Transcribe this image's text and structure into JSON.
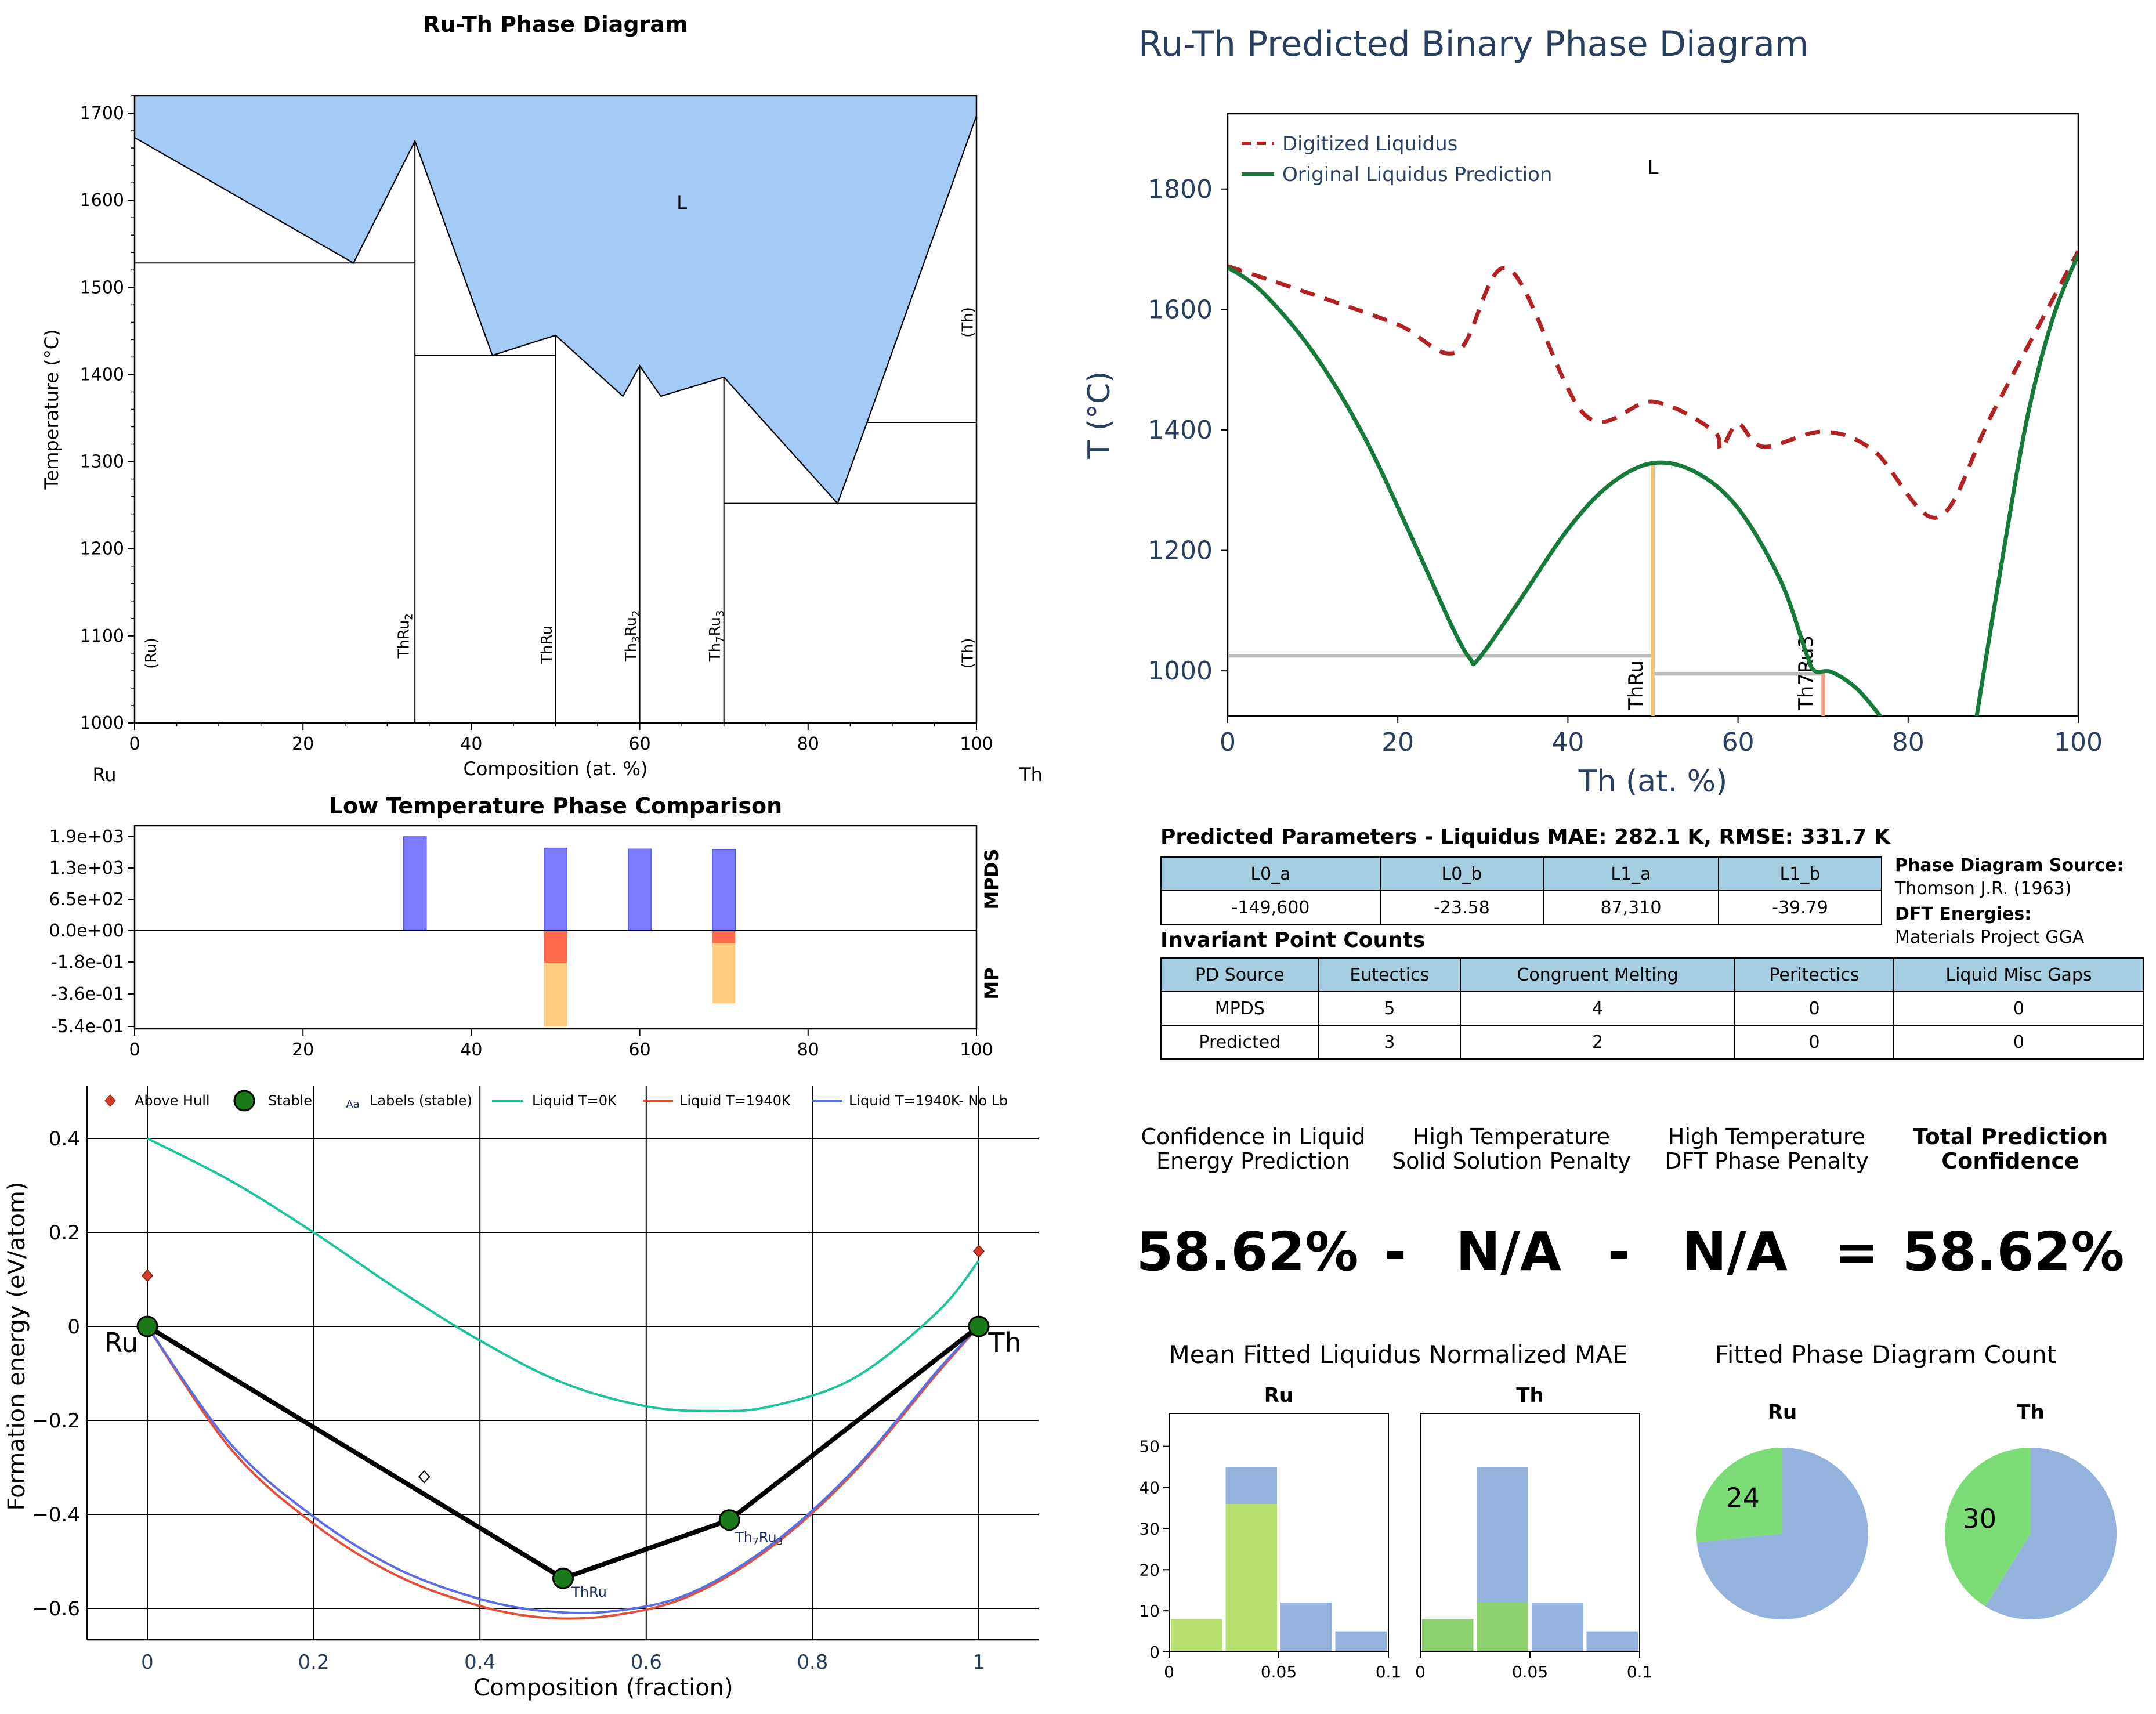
{
  "colors": {
    "liquid_fill": "#a3cbf5",
    "mpds": "#7b7bff",
    "mp_red": "#ff6a4a",
    "mp_orange": "#ffcc80",
    "dig_liquidus": "#b22222",
    "orig_liquidus": "#157a3a",
    "thru_line": "#f0c674",
    "th7ru3_line": "#f39b7a",
    "liq0": "#1bc49a",
    "liq1940": "#e3503a",
    "liq1940nolb": "#5b6ee1",
    "green_hist": "#b8e06e",
    "green_hist_dark": "#8dd06e",
    "blue_hist": "#93b3dc",
    "pie_green": "#7bdc76",
    "pie_blue": "#93b3dc",
    "plotly_text": "#2a3f5f"
  },
  "chart_data": [
    {
      "id": "ruth_phase_diagram",
      "type": "area",
      "title": "Ru-Th Phase Diagram",
      "xlabel": "Composition (at. %)",
      "ylabel": "Temperature (°C)",
      "xlim": [
        0,
        100
      ],
      "ylim": [
        1000,
        1720
      ],
      "xticks": [
        0,
        20,
        40,
        60,
        80,
        100
      ],
      "yticks": [
        1000,
        1100,
        1200,
        1300,
        1400,
        1500,
        1600,
        1700
      ],
      "end_labels": {
        "left": "Ru",
        "right": "Th"
      },
      "liquid_label": "L",
      "liquidus": [
        [
          0,
          1672
        ],
        [
          26,
          1528
        ],
        [
          33.3,
          1668
        ],
        [
          42.5,
          1422
        ],
        [
          50,
          1445
        ],
        [
          58,
          1375
        ],
        [
          60,
          1410
        ],
        [
          62.5,
          1375
        ],
        [
          70,
          1397
        ],
        [
          83.5,
          1252
        ],
        [
          87,
          1345
        ],
        [
          100,
          1697
        ]
      ],
      "horizontal_lines": [
        [
          [
            0,
            33.3
          ],
          1528
        ],
        [
          [
            33.3,
            50
          ],
          1422
        ],
        [
          [
            70,
            100
          ],
          1252
        ],
        [
          [
            87,
            100
          ],
          1345
        ]
      ],
      "vertical_lines": [
        [
          33.3,
          1000,
          1668
        ],
        [
          50,
          1000,
          1445
        ],
        [
          60,
          1000,
          1410
        ],
        [
          70,
          1000,
          1397
        ]
      ],
      "phase_labels": [
        {
          "text": "(Ru)",
          "x": 2,
          "y": 1080
        },
        {
          "text": "ThRu",
          "sub": "2",
          "x": 32,
          "y": 1100
        },
        {
          "text": "ThRu",
          "sub": "",
          "x": 49,
          "y": 1090
        },
        {
          "text": "Th",
          "sub": "3",
          "text2": "Ru",
          "sub2": "2",
          "x": 59,
          "y": 1100
        },
        {
          "text": "Th",
          "sub": "7",
          "text2": "Ru",
          "sub2": "3",
          "x": 69,
          "y": 1100
        },
        {
          "text": "(Th)",
          "x": 99,
          "y": 1080
        },
        {
          "text": "(Th)",
          "x": 99,
          "y": 1460
        }
      ]
    },
    {
      "id": "predicted_binary",
      "type": "line",
      "title": "Ru-Th Predicted Binary Phase Diagram",
      "xlabel": "Th (at. %)",
      "ylabel": "T (°C)",
      "xlim": [
        0,
        100
      ],
      "ylim": [
        925,
        1925
      ],
      "xticks": [
        0,
        20,
        40,
        60,
        80,
        100
      ],
      "yticks": [
        1000,
        1200,
        1400,
        1600,
        1800
      ],
      "liquid_label": "L",
      "series": [
        {
          "name": "Digitized Liquidus",
          "style": "dash",
          "points": [
            [
              0,
              1672
            ],
            [
              10,
              1625
            ],
            [
              20,
              1575
            ],
            [
              27,
              1530
            ],
            [
              33,
              1668
            ],
            [
              42,
              1425
            ],
            [
              50,
              1447
            ],
            [
              57,
              1400
            ],
            [
              58,
              1368
            ],
            [
              60,
              1410
            ],
            [
              63,
              1372
            ],
            [
              70,
              1397
            ],
            [
              76,
              1365
            ],
            [
              83.5,
              1255
            ],
            [
              90,
              1430
            ],
            [
              100,
              1697
            ]
          ]
        },
        {
          "name": "Original Liquidus Prediction",
          "style": "solid",
          "points": [
            [
              0,
              1670
            ],
            [
              4,
              1630
            ],
            [
              10,
              1530
            ],
            [
              16,
              1390
            ],
            [
              22,
              1210
            ],
            [
              26.5,
              1070
            ],
            [
              28.5,
              1020
            ],
            [
              29.5,
              1020
            ],
            [
              34,
              1110
            ],
            [
              40,
              1235
            ],
            [
              45,
              1310
            ],
            [
              50,
              1345
            ],
            [
              55,
              1330
            ],
            [
              60,
              1270
            ],
            [
              65,
              1150
            ],
            [
              68,
              1030
            ],
            [
              69,
              1000
            ],
            [
              71,
              998
            ],
            [
              74,
              970
            ],
            [
              77,
              920
            ]
          ]
        },
        {
          "name": "",
          "style": "solid_right",
          "points": [
            [
              88,
              920
            ],
            [
              91,
              1180
            ],
            [
              94,
              1420
            ],
            [
              97,
              1585
            ],
            [
              100,
              1692
            ]
          ]
        }
      ],
      "gray_lines": [
        [
          [
            0,
            50
          ],
          1025
        ],
        [
          [
            50,
            70
          ],
          995
        ]
      ],
      "compound_lines": [
        {
          "name": "ThRu",
          "x": 50,
          "top": 1345,
          "color": "thru_line"
        },
        {
          "name": "Th7Ru3",
          "x": 70,
          "top": 998,
          "color": "th7ru3_line"
        }
      ]
    },
    {
      "id": "low_temp_comparison",
      "type": "bar",
      "title": "Low Temperature Phase Comparison",
      "xlim": [
        0,
        100
      ],
      "xticks": [
        0,
        20,
        40,
        60,
        80,
        100
      ],
      "yticks": [
        "1.9e+03",
        "1.3e+03",
        "6.5e+02",
        "0.0e+00",
        "-1.8e-01",
        "-3.6e-01",
        "-5.4e-01"
      ],
      "row_labels": [
        "MPDS",
        "MP"
      ],
      "mpds_bars": [
        {
          "x": 33.3,
          "value": 1900
        },
        {
          "x": 50,
          "value": 1670
        },
        {
          "x": 60,
          "value": 1650
        },
        {
          "x": 70,
          "value": 1640
        }
      ],
      "mp_bars": [
        {
          "x": 50,
          "value_red": -0.18,
          "value_orange": -0.54
        },
        {
          "x": 70,
          "value_red": -0.07,
          "value_orange": -0.41
        }
      ]
    },
    {
      "id": "formation_energy",
      "type": "scatter",
      "xlabel": "Composition (fraction)",
      "ylabel": "Formation energy (eV/atom)",
      "xlim": [
        -0.03,
        1.07
      ],
      "ylim": [
        -0.66,
        0.43
      ],
      "xticks": [
        0,
        0.2,
        0.4,
        0.6,
        0.8,
        1
      ],
      "yticks": [
        0.4,
        0.2,
        0,
        -0.2,
        -0.4,
        -0.6
      ],
      "ytick_labels": [
        "0.4",
        "0.2",
        "0",
        "−0.2",
        "−0.4",
        "−0.6"
      ],
      "xtick_labels": [
        "0",
        "0.2",
        "0.4",
        "0.6",
        "0.8",
        "1"
      ],
      "legend": [
        "Above Hull",
        "Stable",
        "Labels (stable)",
        "Liquid T=0K",
        "Liquid T=1940K",
        "Liquid T=1940K- No Lb"
      ],
      "legend_aa": "Aa",
      "stable": [
        {
          "x": 0,
          "y": 0,
          "label": "Ru"
        },
        {
          "x": 0.5,
          "y": -0.536,
          "label": "ThRu"
        },
        {
          "x": 0.7,
          "y": -0.412,
          "label": "Th7Ru3"
        },
        {
          "x": 1,
          "y": 0,
          "label": "Th"
        }
      ],
      "above_hull": [
        {
          "x": 0,
          "y": 0.108
        },
        {
          "x": 1,
          "y": 0.16
        }
      ],
      "open_diamond": [
        {
          "x": 0.333,
          "y": -0.32
        }
      ],
      "liq0": [
        [
          0,
          0.4
        ],
        [
          0.1,
          0.31
        ],
        [
          0.2,
          0.2
        ],
        [
          0.3,
          0.08
        ],
        [
          0.4,
          -0.03
        ],
        [
          0.5,
          -0.12
        ],
        [
          0.6,
          -0.17
        ],
        [
          0.68,
          -0.18
        ],
        [
          0.75,
          -0.17
        ],
        [
          0.85,
          -0.11
        ],
        [
          0.95,
          0.03
        ],
        [
          1,
          0.14
        ]
      ],
      "liq1940": [
        [
          0,
          0
        ],
        [
          0.1,
          -0.26
        ],
        [
          0.2,
          -0.42
        ],
        [
          0.3,
          -0.53
        ],
        [
          0.4,
          -0.595
        ],
        [
          0.48,
          -0.62
        ],
        [
          0.56,
          -0.615
        ],
        [
          0.65,
          -0.575
        ],
        [
          0.75,
          -0.47
        ],
        [
          0.85,
          -0.31
        ],
        [
          0.95,
          -0.1
        ],
        [
          1,
          0
        ]
      ],
      "liq1940nolb": [
        [
          0,
          0
        ],
        [
          0.1,
          -0.25
        ],
        [
          0.2,
          -0.405
        ],
        [
          0.3,
          -0.515
        ],
        [
          0.4,
          -0.58
        ],
        [
          0.48,
          -0.606
        ],
        [
          0.56,
          -0.606
        ],
        [
          0.65,
          -0.57
        ],
        [
          0.75,
          -0.465
        ],
        [
          0.85,
          -0.305
        ],
        [
          0.95,
          -0.095
        ],
        [
          1,
          0
        ]
      ]
    },
    {
      "id": "mae_hist_ru",
      "type": "bar",
      "title": "Ru",
      "xlim": [
        0,
        0.1
      ],
      "ylim": [
        0,
        58
      ],
      "yticks": [
        0,
        10,
        20,
        30,
        40,
        50
      ],
      "xtick_labels": [
        "0",
        "0.05",
        "0.1"
      ],
      "bins": [
        {
          "x0": 0,
          "x1": 0.025,
          "green": 8,
          "blue": 0
        },
        {
          "x0": 0.025,
          "x1": 0.05,
          "green": 36,
          "blue": 45
        },
        {
          "x0": 0.05,
          "x1": 0.075,
          "green": 0,
          "blue": 12
        },
        {
          "x0": 0.075,
          "x1": 0.1,
          "green": 0,
          "blue": 5
        }
      ]
    },
    {
      "id": "mae_hist_th",
      "type": "bar",
      "title": "Th",
      "xlim": [
        0,
        0.1
      ],
      "ylim": [
        0,
        58
      ],
      "xtick_labels": [
        "0",
        "0.05",
        "0.1"
      ],
      "bins": [
        {
          "x0": 0,
          "x1": 0.025,
          "green": 8,
          "blue": 0
        },
        {
          "x0": 0.025,
          "x1": 0.05,
          "green": 12,
          "blue": 45
        },
        {
          "x0": 0.05,
          "x1": 0.075,
          "green": 0,
          "blue": 12
        },
        {
          "x0": 0.075,
          "x1": 0.1,
          "green": 0,
          "blue": 5
        }
      ]
    },
    {
      "id": "pie_ru",
      "type": "pie",
      "title": "Ru",
      "slices": [
        {
          "label": "24",
          "value": 24
        },
        {
          "label": "",
          "value": 66
        }
      ]
    },
    {
      "id": "pie_th",
      "type": "pie",
      "title": "Th",
      "slices": [
        {
          "label": "30",
          "value": 30
        },
        {
          "label": "",
          "value": 43
        }
      ]
    }
  ],
  "legend_pred": {
    "dig": "Digitized Liquidus",
    "orig": "Original Liquidus Prediction"
  },
  "params": {
    "title": "Predicted Parameters - Liquidus MAE: 282.1 K, RMSE: 331.7 K",
    "headers": [
      "L0_a",
      "L0_b",
      "L1_a",
      "L1_b"
    ],
    "values": [
      "-149,600",
      "-23.58",
      "87,310",
      "-39.79"
    ]
  },
  "sources": {
    "pd_label": "Phase Diagram Source:",
    "pd_value": "Thomson J.R. (1963)",
    "dft_label": "DFT Energies:",
    "dft_value": "Materials Project GGA"
  },
  "invariants": {
    "title": "Invariant Point Counts",
    "headers": [
      "PD Source",
      "Eutectics",
      "Congruent Melting",
      "Peritectics",
      "Liquid Misc Gaps"
    ],
    "rows": [
      [
        "MPDS",
        "5",
        "4",
        "0",
        "0"
      ],
      [
        "Predicted",
        "3",
        "2",
        "0",
        "0"
      ]
    ]
  },
  "confidence": {
    "labels": [
      "Confidence in Liquid Energy Prediction",
      "High Temperature Solid Solution Penalty",
      "High Temperature DFT Phase Penalty",
      "Total Prediction Confidence"
    ],
    "values": [
      "58.62%",
      "N/A",
      "N/A",
      "58.62%"
    ],
    "ops": [
      "-",
      "-",
      "="
    ]
  },
  "section_titles": {
    "mae": "Mean Fitted Liquidus Normalized MAE",
    "pie": "Fitted Phase Diagram Count"
  }
}
